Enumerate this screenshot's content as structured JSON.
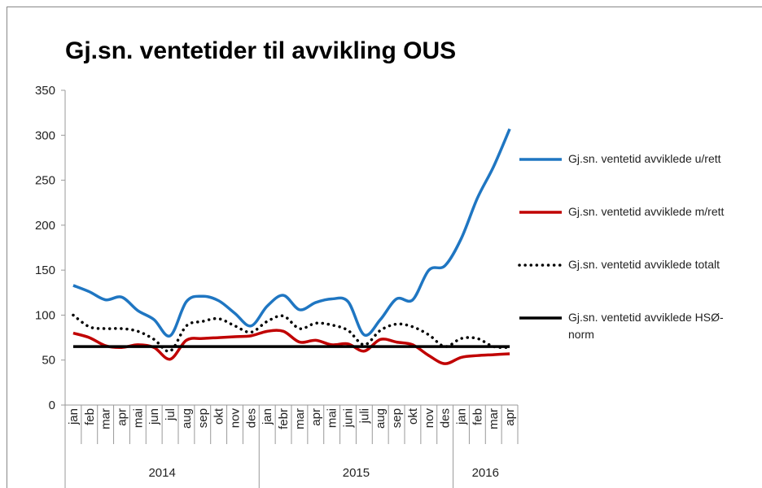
{
  "chart_data": {
    "type": "line",
    "title": "Gj.sn. ventetider til avvikling OUS",
    "categories": [
      "jan",
      "feb",
      "mar",
      "apr",
      "mai",
      "jun",
      "jul",
      "aug",
      "sep",
      "okt",
      "nov",
      "des",
      "jan",
      "febr",
      "mar",
      "apr",
      "mai",
      "juni",
      "juli",
      "aug",
      "sep",
      "okt",
      "nov",
      "des",
      "jan",
      "feb",
      "mar",
      "apr"
    ],
    "years": [
      "2014",
      null,
      null,
      null,
      null,
      null,
      null,
      null,
      null,
      null,
      null,
      null,
      "2015",
      null,
      null,
      null,
      null,
      null,
      null,
      null,
      null,
      null,
      null,
      null,
      "2016",
      null,
      null,
      null
    ],
    "series": [
      {
        "name": "Gj.sn. ventetid avviklede u/rett",
        "color": "#1f76c2",
        "dash": "solid",
        "values": [
          133,
          126,
          117,
          120,
          105,
          95,
          77,
          115,
          121,
          116,
          102,
          88,
          110,
          122,
          106,
          114,
          118,
          115,
          78,
          95,
          118,
          117,
          150,
          155,
          185,
          230,
          265,
          307
        ]
      },
      {
        "name": "Gj.sn. ventetid avviklede m/rett",
        "color": "#c00000",
        "dash": "solid",
        "values": [
          80,
          75,
          66,
          64,
          67,
          64,
          51,
          72,
          74,
          75,
          76,
          77,
          82,
          82,
          70,
          72,
          67,
          68,
          60,
          73,
          70,
          67,
          55,
          46,
          53,
          55,
          56,
          57
        ]
      },
      {
        "name": "Gj.sn. ventetid avviklede totalt",
        "color": "#000000",
        "dash": "dotted",
        "values": [
          100,
          87,
          85,
          85,
          82,
          73,
          60,
          88,
          93,
          96,
          88,
          81,
          93,
          99,
          85,
          91,
          89,
          83,
          67,
          83,
          90,
          87,
          78,
          65,
          74,
          74,
          65,
          64
        ]
      },
      {
        "name": "Gj.sn. ventetid avviklede HSØ-norm",
        "color": "#000000",
        "dash": "solid",
        "values": [
          65,
          65,
          65,
          65,
          65,
          65,
          65,
          65,
          65,
          65,
          65,
          65,
          65,
          65,
          65,
          65,
          65,
          65,
          65,
          65,
          65,
          65,
          65,
          65,
          65,
          65,
          65,
          65
        ]
      }
    ],
    "ylim": [
      0,
      350
    ],
    "yticks": [
      0,
      50,
      100,
      150,
      200,
      250,
      300,
      350
    ],
    "grid": false,
    "legend": "right"
  }
}
